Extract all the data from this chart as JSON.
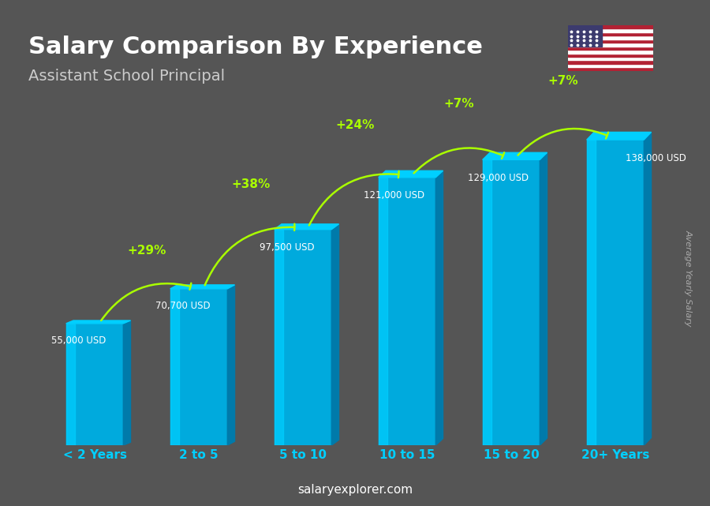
{
  "title": "Salary Comparison By Experience",
  "subtitle": "Assistant School Principal",
  "categories": [
    "< 2 Years",
    "2 to 5",
    "5 to 10",
    "10 to 15",
    "15 to 20",
    "20+ Years"
  ],
  "values": [
    55000,
    70700,
    97500,
    121000,
    129000,
    138000
  ],
  "value_labels": [
    "55,000 USD",
    "70,700 USD",
    "97,500 USD",
    "121,000 USD",
    "129,000 USD",
    "138,000 USD"
  ],
  "pct_labels": [
    "+29%",
    "+38%",
    "+24%",
    "+7%",
    "+7%"
  ],
  "bar_color_top": "#00CFFF",
  "bar_color_mid": "#00AADD",
  "bar_color_dark": "#007AAA",
  "bar_color_side": "#005580",
  "title_color": "#FFFFFF",
  "subtitle_color": "#CCCCCC",
  "label_color": "#FFFFFF",
  "pct_color": "#AAFF00",
  "tick_color": "#00CFFF",
  "ylabel": "Average Yearly Salary",
  "ylabel_color": "#AAAAAA",
  "website": "salaryexplorer.com",
  "bg_color": "#555555",
  "ylim_max": 160000,
  "bar_width": 0.55
}
